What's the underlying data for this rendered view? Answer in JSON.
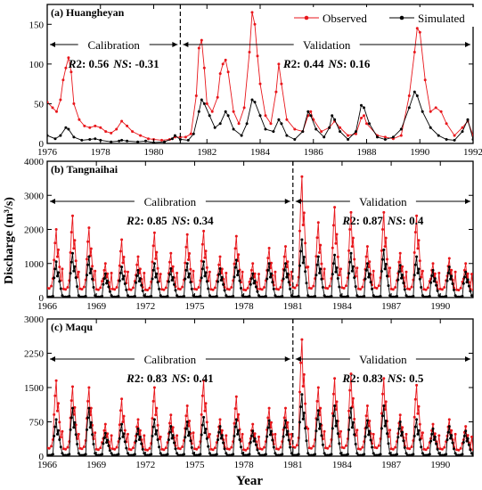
{
  "figure": {
    "ylabel": "Discharge (m³/s)",
    "xlabel": "Year"
  },
  "legend": {
    "observed_label": "Observed",
    "simulated_label": "Simulated",
    "observed_color": "#e8161b",
    "simulated_color": "#000000"
  },
  "chart_data": [
    {
      "type": "line",
      "panel_label": "(a) Huangheyan",
      "xlim": [
        1976,
        1992
      ],
      "ylim": [
        0,
        175
      ],
      "yticks": [
        0,
        50,
        100,
        150
      ],
      "xticks": [
        1976,
        1978,
        1980,
        1982,
        1984,
        1986,
        1988,
        1990,
        1992
      ],
      "split_year": 1981,
      "calibration_label": "Calibration",
      "validation_label": "Validation",
      "calibration_stats": {
        "r2_label": "R",
        "r2_value": "2: 0.56",
        "ns_label": "NS",
        "ns_value": ": -0.31"
      },
      "validation_stats": {
        "r2_label": "R",
        "r2_value": "2: 0.44",
        "ns_label": "NS",
        "ns_value": ": 0.16"
      },
      "legend_position": "top-right",
      "series": [
        {
          "name": "Observed",
          "points": [
            [
              1976.0,
              52
            ],
            [
              1976.2,
              45
            ],
            [
              1976.35,
              40
            ],
            [
              1976.5,
              55
            ],
            [
              1976.6,
              80
            ],
            [
              1976.7,
              95
            ],
            [
              1976.8,
              108
            ],
            [
              1976.9,
              90
            ],
            [
              1977.0,
              50
            ],
            [
              1977.2,
              30
            ],
            [
              1977.4,
              22
            ],
            [
              1977.6,
              20
            ],
            [
              1977.8,
              22
            ],
            [
              1978.0,
              20
            ],
            [
              1978.2,
              15
            ],
            [
              1978.4,
              13
            ],
            [
              1978.6,
              18
            ],
            [
              1978.8,
              28
            ],
            [
              1979.0,
              22
            ],
            [
              1979.2,
              15
            ],
            [
              1979.5,
              10
            ],
            [
              1979.8,
              6
            ],
            [
              1980.0,
              5
            ],
            [
              1980.3,
              4
            ],
            [
              1980.6,
              5
            ],
            [
              1980.8,
              8
            ],
            [
              1981.0,
              8
            ],
            [
              1981.2,
              8
            ],
            [
              1981.4,
              12
            ],
            [
              1981.6,
              60
            ],
            [
              1981.7,
              120
            ],
            [
              1981.8,
              130
            ],
            [
              1981.9,
              95
            ],
            [
              1982.0,
              50
            ],
            [
              1982.2,
              40
            ],
            [
              1982.4,
              58
            ],
            [
              1982.5,
              88
            ],
            [
              1982.6,
              100
            ],
            [
              1982.7,
              105
            ],
            [
              1982.8,
              90
            ],
            [
              1983.0,
              40
            ],
            [
              1983.2,
              25
            ],
            [
              1983.4,
              45
            ],
            [
              1983.6,
              115
            ],
            [
              1983.7,
              165
            ],
            [
              1983.8,
              150
            ],
            [
              1983.9,
              110
            ],
            [
              1984.0,
              75
            ],
            [
              1984.2,
              35
            ],
            [
              1984.4,
              25
            ],
            [
              1984.6,
              65
            ],
            [
              1984.7,
              100
            ],
            [
              1984.8,
              75
            ],
            [
              1985.0,
              30
            ],
            [
              1985.3,
              18
            ],
            [
              1985.6,
              15
            ],
            [
              1985.8,
              35
            ],
            [
              1985.9,
              40
            ],
            [
              1986.0,
              30
            ],
            [
              1986.3,
              15
            ],
            [
              1986.6,
              20
            ],
            [
              1986.8,
              28
            ],
            [
              1987.0,
              20
            ],
            [
              1987.3,
              10
            ],
            [
              1987.6,
              12
            ],
            [
              1987.8,
              32
            ],
            [
              1987.9,
              35
            ],
            [
              1988.0,
              25
            ],
            [
              1988.4,
              10
            ],
            [
              1988.7,
              8
            ],
            [
              1989.0,
              6
            ],
            [
              1989.3,
              10
            ],
            [
              1989.6,
              60
            ],
            [
              1989.8,
              115
            ],
            [
              1989.9,
              145
            ],
            [
              1990.0,
              140
            ],
            [
              1990.2,
              80
            ],
            [
              1990.4,
              40
            ],
            [
              1990.6,
              45
            ],
            [
              1990.8,
              40
            ],
            [
              1991.0,
              25
            ],
            [
              1991.3,
              10
            ],
            [
              1991.6,
              20
            ],
            [
              1991.8,
              28
            ],
            [
              1992.0,
              10
            ]
          ]
        },
        {
          "name": "Simulated",
          "points": [
            [
              1976.0,
              10
            ],
            [
              1976.3,
              6
            ],
            [
              1976.5,
              10
            ],
            [
              1976.7,
              20
            ],
            [
              1976.8,
              18
            ],
            [
              1977.0,
              8
            ],
            [
              1977.3,
              4
            ],
            [
              1977.6,
              5
            ],
            [
              1977.8,
              6
            ],
            [
              1978.0,
              4
            ],
            [
              1978.4,
              2
            ],
            [
              1978.7,
              3
            ],
            [
              1978.8,
              4
            ],
            [
              1979.0,
              3
            ],
            [
              1979.4,
              2
            ],
            [
              1979.7,
              3
            ],
            [
              1980.0,
              1
            ],
            [
              1980.4,
              2
            ],
            [
              1980.7,
              6
            ],
            [
              1980.8,
              10
            ],
            [
              1981.0,
              5
            ],
            [
              1981.3,
              4
            ],
            [
              1981.5,
              12
            ],
            [
              1981.7,
              40
            ],
            [
              1981.8,
              55
            ],
            [
              1981.9,
              50
            ],
            [
              1982.1,
              35
            ],
            [
              1982.3,
              20
            ],
            [
              1982.5,
              25
            ],
            [
              1982.7,
              40
            ],
            [
              1982.8,
              35
            ],
            [
              1983.0,
              18
            ],
            [
              1983.3,
              10
            ],
            [
              1983.5,
              25
            ],
            [
              1983.7,
              55
            ],
            [
              1983.8,
              52
            ],
            [
              1984.0,
              35
            ],
            [
              1984.2,
              18
            ],
            [
              1984.5,
              15
            ],
            [
              1984.7,
              30
            ],
            [
              1984.8,
              25
            ],
            [
              1985.0,
              10
            ],
            [
              1985.3,
              5
            ],
            [
              1985.6,
              15
            ],
            [
              1985.8,
              40
            ],
            [
              1985.9,
              35
            ],
            [
              1986.1,
              18
            ],
            [
              1986.4,
              8
            ],
            [
              1986.6,
              20
            ],
            [
              1986.7,
              35
            ],
            [
              1986.8,
              30
            ],
            [
              1987.0,
              15
            ],
            [
              1987.3,
              5
            ],
            [
              1987.6,
              15
            ],
            [
              1987.8,
              48
            ],
            [
              1987.9,
              45
            ],
            [
              1988.1,
              25
            ],
            [
              1988.4,
              8
            ],
            [
              1988.7,
              5
            ],
            [
              1989.0,
              8
            ],
            [
              1989.3,
              18
            ],
            [
              1989.6,
              45
            ],
            [
              1989.8,
              65
            ],
            [
              1989.9,
              60
            ],
            [
              1990.1,
              40
            ],
            [
              1990.4,
              20
            ],
            [
              1990.7,
              10
            ],
            [
              1991.0,
              5
            ],
            [
              1991.3,
              4
            ],
            [
              1991.6,
              15
            ],
            [
              1991.8,
              30
            ],
            [
              1992.0,
              5
            ]
          ]
        }
      ]
    },
    {
      "type": "line",
      "panel_label": "(b) Tangnaihai",
      "xlim": [
        1966,
        1992
      ],
      "ylim": [
        0,
        4000
      ],
      "yticks": [
        0,
        1000,
        2000,
        3000,
        4000
      ],
      "xticks": [
        1966,
        1969,
        1972,
        1975,
        1978,
        1981,
        1984,
        1987,
        1990
      ],
      "split_year": 1981,
      "calibration_label": "Calibration",
      "validation_label": "Validation",
      "calibration_stats": {
        "r2_label": "R",
        "r2_value": "2: 0.85",
        "ns_label": "NS",
        "ns_value": ": 0.34"
      },
      "validation_stats": {
        "r2_label": "R",
        "r2_value": "2: 0.87",
        "ns_label": "NS",
        "ns_value": ": 0.4"
      },
      "peaks_observed": [
        2000,
        2400,
        2050,
        1000,
        1700,
        1200,
        1900,
        1300,
        1850,
        1950,
        1200,
        1800,
        1000,
        1450,
        1500,
        3550,
        2200,
        2650,
        2500,
        1500,
        2500,
        1300,
        2400,
        1000,
        1150,
        1000
      ],
      "peaks_simulated": [
        1050,
        1300,
        1200,
        700,
        900,
        800,
        1000,
        850,
        1000,
        1050,
        850,
        1100,
        700,
        1000,
        1000,
        1700,
        1200,
        1250,
        1300,
        1000,
        1400,
        950,
        1200,
        800,
        900,
        750
      ],
      "lows_observed": [
        280,
        250,
        260,
        240,
        250,
        240,
        230,
        240,
        260,
        250,
        240,
        250,
        230,
        250,
        250,
        300,
        280,
        280,
        290,
        260,
        290,
        250,
        260,
        240,
        250,
        230
      ],
      "lows_simulated": [
        20,
        20,
        20,
        20,
        20,
        20,
        20,
        20,
        20,
        20,
        20,
        20,
        20,
        20,
        20,
        20,
        20,
        20,
        20,
        20,
        20,
        20,
        20,
        20,
        20,
        20
      ],
      "legend_position": "top-right"
    },
    {
      "type": "line",
      "panel_label": "(c) Maqu",
      "xlim": [
        1966,
        1992
      ],
      "ylim": [
        0,
        3000
      ],
      "yticks": [
        0,
        750,
        1500,
        2250,
        3000
      ],
      "xticks": [
        1966,
        1969,
        1972,
        1975,
        1978,
        1981,
        1984,
        1987,
        1990
      ],
      "split_year": 1981,
      "calibration_label": "Calibration",
      "validation_label": "Validation",
      "calibration_stats": {
        "r2_label": "R",
        "r2_value": "2: 0.83",
        "ns_label": "NS",
        "ns_value": ": 0.41"
      },
      "validation_stats": {
        "r2_label": "R",
        "r2_value": "2: 0.83",
        "ns_label": "NS",
        "ns_value": ": 0.5"
      },
      "peaks_observed": [
        1650,
        1520,
        1500,
        700,
        1250,
        800,
        1500,
        900,
        1100,
        1650,
        800,
        1300,
        700,
        1050,
        1050,
        2550,
        1500,
        1700,
        1800,
        1100,
        1700,
        900,
        1550,
        700,
        800,
        650
      ],
      "peaks_simulated": [
        800,
        1050,
        1050,
        500,
        700,
        600,
        800,
        650,
        750,
        850,
        650,
        800,
        550,
        780,
        780,
        1350,
        1000,
        1100,
        1050,
        780,
        1100,
        750,
        800,
        600,
        650,
        550
      ],
      "lows_observed": [
        180,
        160,
        170,
        150,
        160,
        150,
        140,
        150,
        170,
        160,
        150,
        160,
        140,
        160,
        160,
        200,
        180,
        180,
        190,
        160,
        190,
        160,
        170,
        150,
        160,
        140
      ],
      "lows_simulated": [
        20,
        20,
        20,
        20,
        20,
        20,
        20,
        20,
        20,
        20,
        20,
        20,
        20,
        20,
        20,
        20,
        20,
        20,
        20,
        20,
        20,
        20,
        20,
        20,
        20,
        20
      ],
      "legend_position": "top-right"
    }
  ]
}
